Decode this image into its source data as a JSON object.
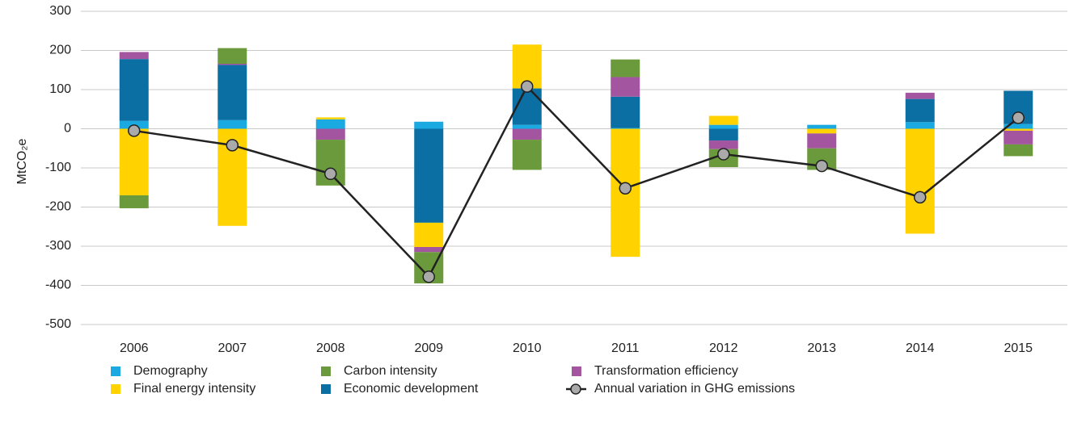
{
  "chart_data": {
    "type": "bar",
    "stacked": true,
    "y_label": "MtCO₂e",
    "categories": [
      "2006",
      "2007",
      "2008",
      "2009",
      "2010",
      "2011",
      "2012",
      "2013",
      "2014",
      "2015"
    ],
    "ylim": [
      -500,
      300
    ],
    "yticks": [
      -500,
      -400,
      -300,
      -200,
      -100,
      0,
      100,
      200,
      300
    ],
    "grid": true,
    "series": [
      {
        "name": "Demography",
        "color": "#1ba9e1",
        "values": [
          20,
          22,
          24,
          18,
          10,
          2,
          10,
          10,
          17,
          12
        ]
      },
      {
        "name": "Economic development",
        "color": "#0b6fa4",
        "values": [
          158,
          141,
          0,
          -240,
          93,
          80,
          -30,
          0,
          59,
          85
        ]
      },
      {
        "name": "Final energy intensity",
        "color": "#ffd200",
        "values": [
          -170,
          -248,
          5,
          -62,
          112,
          -327,
          23,
          -12,
          -268,
          -5
        ]
      },
      {
        "name": "Transformation efficiency",
        "color": "#a3559f",
        "values": [
          18,
          3,
          -28,
          -13,
          -28,
          50,
          -22,
          -38,
          16,
          -35
        ]
      },
      {
        "name": "Carbon intensity",
        "color": "#6a9a3b",
        "values": [
          -33,
          40,
          -117,
          -80,
          -77,
          45,
          -46,
          -55,
          0,
          -30
        ]
      },
      {
        "name": "Annual variation in GHG emissions",
        "type": "line",
        "color": "#222222",
        "marker_color": "#aaaaaa",
        "values": [
          -5,
          -42,
          -115,
          -378,
          108,
          -152,
          -65,
          -95,
          -175,
          28
        ]
      }
    ]
  }
}
